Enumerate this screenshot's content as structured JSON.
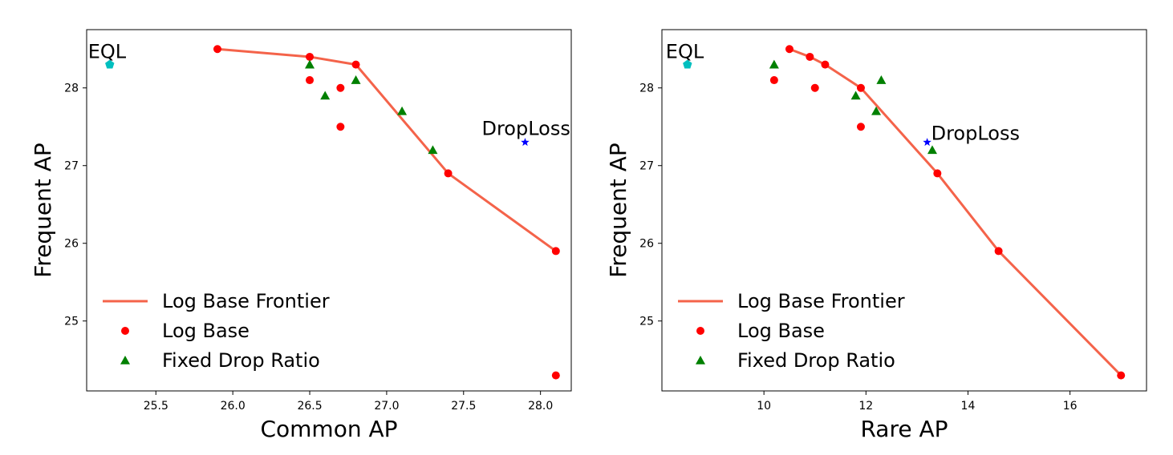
{
  "chart_data": [
    {
      "type": "scatter",
      "xlabel": "Common AP",
      "ylabel": "Frequent AP",
      "xlim": [
        25.05,
        28.2
      ],
      "ylim": [
        24.1,
        28.75
      ],
      "xticks": [
        "25.5",
        "26.0",
        "26.5",
        "27.0",
        "27.5",
        "28.0"
      ],
      "xtick_values": [
        25.5,
        26.0,
        26.5,
        27.0,
        27.5,
        28.0
      ],
      "yticks": [
        "25",
        "26",
        "27",
        "28"
      ],
      "ytick_values": [
        25,
        26,
        27,
        28
      ],
      "grid": false,
      "legend_position": "lower-left",
      "series": [
        {
          "name": "Log Base Frontier",
          "kind": "line",
          "color": "#f4634a",
          "points": [
            [
              25.9,
              28.5
            ],
            [
              26.5,
              28.4
            ],
            [
              26.8,
              28.3
            ],
            [
              27.4,
              26.9
            ],
            [
              28.1,
              25.9
            ]
          ]
        },
        {
          "name": "Log Base",
          "kind": "circle",
          "color": "#ff0000",
          "points": [
            [
              25.9,
              28.5
            ],
            [
              26.5,
              28.4
            ],
            [
              26.8,
              28.3
            ],
            [
              26.5,
              28.1
            ],
            [
              26.7,
              28.0
            ],
            [
              26.7,
              27.5
            ],
            [
              27.4,
              26.9
            ],
            [
              28.1,
              25.9
            ],
            [
              28.1,
              24.3
            ]
          ]
        },
        {
          "name": "Fixed Drop Ratio",
          "kind": "triangle",
          "color": "#008000",
          "points": [
            [
              26.5,
              28.3
            ],
            [
              26.6,
              27.9
            ],
            [
              26.8,
              28.1
            ],
            [
              27.1,
              27.7
            ],
            [
              27.3,
              27.2
            ]
          ]
        }
      ],
      "annotations": [
        {
          "text": "EQL",
          "marker": "pentagon",
          "color": "#00bfbf",
          "point": [
            25.2,
            28.3
          ]
        },
        {
          "text": "DropLoss",
          "marker": "star",
          "color": "#0000ff",
          "point": [
            27.9,
            27.3
          ]
        }
      ]
    },
    {
      "type": "scatter",
      "xlabel": "Rare AP",
      "ylabel": "Frequent AP",
      "xlim": [
        8.0,
        17.5
      ],
      "ylim": [
        24.1,
        28.75
      ],
      "xticks": [
        "10",
        "12",
        "14",
        "16"
      ],
      "xtick_values": [
        10,
        12,
        14,
        16
      ],
      "yticks": [
        "25",
        "26",
        "27",
        "28"
      ],
      "ytick_values": [
        25,
        26,
        27,
        28
      ],
      "grid": false,
      "legend_position": "lower-left",
      "series": [
        {
          "name": "Log Base Frontier",
          "kind": "line",
          "color": "#f4634a",
          "points": [
            [
              10.5,
              28.5
            ],
            [
              10.9,
              28.4
            ],
            [
              11.2,
              28.3
            ],
            [
              11.9,
              28.0
            ],
            [
              13.4,
              26.9
            ],
            [
              14.6,
              25.9
            ],
            [
              17.0,
              24.3
            ]
          ]
        },
        {
          "name": "Log Base",
          "kind": "circle",
          "color": "#ff0000",
          "points": [
            [
              10.5,
              28.5
            ],
            [
              10.9,
              28.4
            ],
            [
              11.2,
              28.3
            ],
            [
              10.2,
              28.1
            ],
            [
              11.0,
              28.0
            ],
            [
              11.9,
              28.0
            ],
            [
              11.9,
              27.5
            ],
            [
              13.4,
              26.9
            ],
            [
              14.6,
              25.9
            ],
            [
              17.0,
              24.3
            ]
          ]
        },
        {
          "name": "Fixed Drop Ratio",
          "kind": "triangle",
          "color": "#008000",
          "points": [
            [
              10.2,
              28.3
            ],
            [
              11.8,
              27.9
            ],
            [
              12.3,
              28.1
            ],
            [
              12.2,
              27.7
            ],
            [
              13.3,
              27.2
            ]
          ]
        }
      ],
      "annotations": [
        {
          "text": "EQL",
          "marker": "pentagon",
          "color": "#00bfbf",
          "point": [
            8.5,
            28.3
          ]
        },
        {
          "text": "DropLoss",
          "marker": "star",
          "color": "#0000ff",
          "point": [
            13.2,
            27.3
          ]
        }
      ]
    }
  ]
}
